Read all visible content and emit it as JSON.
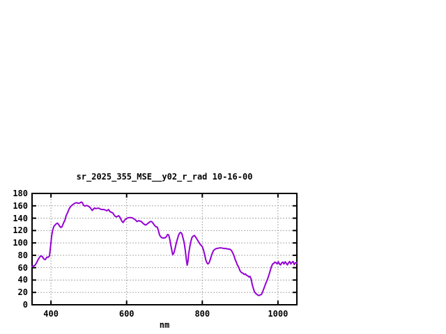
{
  "chart_data": {
    "type": "line",
    "title": "sr_2025_355_MSE__y02_r_rad 10-16-00",
    "xlabel": "nm",
    "ylabel": "",
    "xlim": [
      350,
      1050
    ],
    "ylim": [
      0,
      180
    ],
    "xticks": [
      400,
      600,
      800,
      1000
    ],
    "yticks": [
      0,
      20,
      40,
      60,
      80,
      100,
      120,
      140,
      160,
      180
    ],
    "grid": "dashed",
    "legend_position": "none",
    "line_color": "#9400D3",
    "grid_color": "#a9a9a9",
    "border_color": "#000000",
    "background_color": "#ffffff",
    "series": [
      {
        "points": [
          [
            350,
            62
          ],
          [
            354,
            62.5
          ],
          [
            358,
            64
          ],
          [
            362,
            68
          ],
          [
            366,
            73
          ],
          [
            370,
            77
          ],
          [
            373,
            79
          ],
          [
            377,
            78
          ],
          [
            381,
            74
          ],
          [
            385,
            73
          ],
          [
            389,
            77
          ],
          [
            393,
            77
          ],
          [
            396,
            79
          ],
          [
            399,
            95
          ],
          [
            402,
            112
          ],
          [
            405,
            122
          ],
          [
            408,
            127
          ],
          [
            411,
            129
          ],
          [
            414,
            131
          ],
          [
            417,
            132
          ],
          [
            420,
            130
          ],
          [
            423,
            127
          ],
          [
            426,
            125
          ],
          [
            429,
            126
          ],
          [
            433,
            132
          ],
          [
            437,
            137
          ],
          [
            440,
            144
          ],
          [
            444,
            149
          ],
          [
            448,
            155
          ],
          [
            452,
            159
          ],
          [
            456,
            161
          ],
          [
            460,
            163
          ],
          [
            464,
            164.5
          ],
          [
            468,
            165
          ],
          [
            472,
            164
          ],
          [
            476,
            164.5
          ],
          [
            480,
            166
          ],
          [
            483,
            165
          ],
          [
            486,
            161
          ],
          [
            490,
            159.5
          ],
          [
            494,
            160.5
          ],
          [
            497,
            160
          ],
          [
            500,
            159
          ],
          [
            503,
            157.5
          ],
          [
            506,
            155
          ],
          [
            509,
            152.5
          ],
          [
            512,
            154.5
          ],
          [
            515,
            156.5
          ],
          [
            519,
            155.5
          ],
          [
            523,
            156
          ],
          [
            527,
            156
          ],
          [
            531,
            154.5
          ],
          [
            535,
            154
          ],
          [
            540,
            154
          ],
          [
            544,
            153
          ],
          [
            548,
            152
          ],
          [
            552,
            154
          ],
          [
            556,
            150.5
          ],
          [
            560,
            149.5
          ],
          [
            564,
            148
          ],
          [
            567,
            145
          ],
          [
            570,
            143
          ],
          [
            573,
            142
          ],
          [
            576,
            143
          ],
          [
            579,
            144
          ],
          [
            582,
            142
          ],
          [
            585,
            138
          ],
          [
            588,
            134.5
          ],
          [
            591,
            133
          ],
          [
            594,
            136.5
          ],
          [
            597,
            138
          ],
          [
            600,
            139.5
          ],
          [
            603,
            140.5
          ],
          [
            607,
            141
          ],
          [
            611,
            141
          ],
          [
            615,
            140.5
          ],
          [
            618,
            139.5
          ],
          [
            621,
            138
          ],
          [
            624,
            137
          ],
          [
            627,
            134.5
          ],
          [
            630,
            135.5
          ],
          [
            633,
            136
          ],
          [
            636,
            135
          ],
          [
            639,
            134.5
          ],
          [
            642,
            132.5
          ],
          [
            645,
            131
          ],
          [
            648,
            129.5
          ],
          [
            651,
            129
          ],
          [
            654,
            130.5
          ],
          [
            657,
            132
          ],
          [
            660,
            133.5
          ],
          [
            663,
            134.5
          ],
          [
            666,
            134.5
          ],
          [
            669,
            132.5
          ],
          [
            672,
            130
          ],
          [
            675,
            127.5
          ],
          [
            678,
            126
          ],
          [
            681,
            125.5
          ],
          [
            684,
            120
          ],
          [
            687,
            113
          ],
          [
            690,
            110
          ],
          [
            693,
            108.5
          ],
          [
            696,
            108
          ],
          [
            699,
            108
          ],
          [
            702,
            108.5
          ],
          [
            705,
            110
          ],
          [
            708,
            113.5
          ],
          [
            711,
            113
          ],
          [
            714,
            106
          ],
          [
            717,
            96
          ],
          [
            720,
            86
          ],
          [
            722,
            81
          ],
          [
            725,
            84
          ],
          [
            728,
            91
          ],
          [
            731,
            99
          ],
          [
            734,
            106
          ],
          [
            737,
            112
          ],
          [
            740,
            116
          ],
          [
            743,
            117
          ],
          [
            746,
            115
          ],
          [
            749,
            108
          ],
          [
            752,
            101
          ],
          [
            755,
            88
          ],
          [
            758,
            72
          ],
          [
            760,
            64
          ],
          [
            762,
            70
          ],
          [
            764,
            82
          ],
          [
            767,
            94
          ],
          [
            770,
            103
          ],
          [
            773,
            109
          ],
          [
            776,
            111
          ],
          [
            779,
            112
          ],
          [
            782,
            110
          ],
          [
            785,
            107
          ],
          [
            788,
            104
          ],
          [
            791,
            101
          ],
          [
            794,
            98
          ],
          [
            797,
            96
          ],
          [
            800,
            94
          ],
          [
            803,
            89
          ],
          [
            806,
            82
          ],
          [
            809,
            73
          ],
          [
            812,
            68
          ],
          [
            815,
            66
          ],
          [
            818,
            68
          ],
          [
            821,
            73
          ],
          [
            824,
            79
          ],
          [
            827,
            84
          ],
          [
            830,
            88
          ],
          [
            834,
            90
          ],
          [
            838,
            91
          ],
          [
            842,
            91.5
          ],
          [
            846,
            92
          ],
          [
            850,
            92
          ],
          [
            854,
            91.5
          ],
          [
            858,
            91
          ],
          [
            862,
            91
          ],
          [
            866,
            90.5
          ],
          [
            870,
            90
          ],
          [
            874,
            89.5
          ],
          [
            878,
            87
          ],
          [
            881,
            83
          ],
          [
            884,
            79
          ],
          [
            887,
            73
          ],
          [
            890,
            69
          ],
          [
            893,
            64
          ],
          [
            896,
            61
          ],
          [
            899,
            56
          ],
          [
            902,
            53
          ],
          [
            905,
            51.5
          ],
          [
            908,
            51
          ],
          [
            911,
            49
          ],
          [
            914,
            50
          ],
          [
            917,
            47.5
          ],
          [
            920,
            47
          ],
          [
            923,
            45
          ],
          [
            926,
            46
          ],
          [
            929,
            42
          ],
          [
            932,
            33
          ],
          [
            935,
            26
          ],
          [
            938,
            21
          ],
          [
            941,
            18.5
          ],
          [
            944,
            17
          ],
          [
            947,
            15.5
          ],
          [
            950,
            15
          ],
          [
            953,
            16
          ],
          [
            956,
            16.5
          ],
          [
            959,
            20
          ],
          [
            962,
            25
          ],
          [
            965,
            30
          ],
          [
            968,
            35
          ],
          [
            971,
            39
          ],
          [
            974,
            44
          ],
          [
            977,
            50
          ],
          [
            980,
            56
          ],
          [
            983,
            62
          ],
          [
            986,
            66
          ],
          [
            989,
            67
          ],
          [
            992,
            69
          ],
          [
            995,
            68
          ],
          [
            998,
            66
          ],
          [
            1001,
            69.5
          ],
          [
            1004,
            66
          ],
          [
            1007,
            64.5
          ],
          [
            1010,
            68
          ],
          [
            1013,
            69
          ],
          [
            1016,
            66
          ],
          [
            1019,
            69.5
          ],
          [
            1022,
            67
          ],
          [
            1025,
            64.5
          ],
          [
            1028,
            68
          ],
          [
            1031,
            70
          ],
          [
            1034,
            66
          ],
          [
            1037,
            68.5
          ],
          [
            1040,
            70
          ],
          [
            1043,
            65
          ],
          [
            1046,
            68
          ],
          [
            1049,
            67.5
          ],
          [
            1050,
            68
          ]
        ]
      }
    ]
  }
}
